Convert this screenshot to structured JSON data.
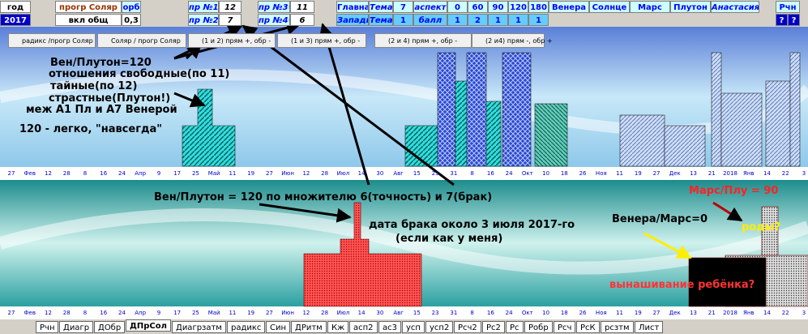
{
  "toolbar": {
    "row1": [
      "год",
      "прогр Соляр",
      "орб",
      "пр №1=",
      "12",
      "пр №3=",
      "11",
      "Главная",
      "Тема",
      "7",
      "аспект",
      "0",
      "60",
      "90",
      "120",
      "180",
      "Венера",
      "Солнце",
      "Марс",
      "Плутон",
      "Анастасия",
      "Рчн"
    ],
    "row2": [
      "2017",
      "вкл общ",
      "0,3",
      "пр №2=",
      "7",
      "пр №4=",
      "6",
      "Западн",
      "Тема",
      "1",
      "балл",
      "1",
      "2",
      "1",
      "1",
      "1",
      "?",
      "?"
    ]
  },
  "options": [
    "радикс /прогр Соляр",
    "Соляр / прогр Соляр",
    "(1 и 2) прям +, обр -",
    "(1 и 3) прям +, обр -",
    "(2 и 4) прям +, обр -",
    "(2 и4) прям -, обр +"
  ],
  "upper_annotations": [
    "Вен/Плутон=120",
    "отношения свободные(по 11)",
    "тайные(по 12)",
    "страстные(Плутон!)",
    "меж А1 Пл и А7 Венерой",
    "120 - легко, \"навсегда\""
  ],
  "upper_axis": [
    "27",
    "Фев",
    "12",
    "28",
    "8",
    "16",
    "24",
    "Апр",
    "9",
    "17",
    "25",
    "Май",
    "11",
    "19",
    "27",
    "Июн",
    "12",
    "28",
    "Июл",
    "14",
    "30",
    "Авг",
    "15",
    "23",
    "31",
    "8",
    "16",
    "24",
    "Окт",
    "10",
    "18",
    "26",
    "Ноя",
    "11",
    "19",
    "27",
    "Дек",
    "13",
    "21",
    "2018",
    "Янв",
    "14",
    "22",
    "3"
  ],
  "lower_annotations": [
    "Вен/Плутон = 120 по множителю 6(точность) и 7(брак)",
    "дата брака около 3 июля 2017-го",
    "(если как у меня)",
    "Марс/Плу = 90",
    "Венера/Марс=0",
    "роды?",
    "вынашивание ребёнка?"
  ],
  "lower_axis": [
    "27",
    "Фев",
    "12",
    "28",
    "8",
    "16",
    "24",
    "Апр",
    "9",
    "17",
    "25",
    "Май",
    "11",
    "19",
    "27",
    "Июн",
    "12",
    "28",
    "Июл",
    "14",
    "30",
    "Авг",
    "15",
    "23",
    "31",
    "8",
    "16",
    "24",
    "Окт",
    "10",
    "18",
    "26",
    "Ноя",
    "11",
    "19",
    "27",
    "Дек",
    "13",
    "21",
    "2018",
    "Янв",
    "14",
    "22",
    "3"
  ],
  "tabs": [
    "Рчн",
    "Диагр",
    "ДОбр",
    "ДПрСол",
    "Диагрзатм",
    "радикс",
    "Син",
    "ДРитм",
    "Кж",
    "асп2",
    "ас3",
    "усп",
    "усп2",
    "Рсч2",
    "Рс2",
    "Рс",
    "Робр",
    "Рсч",
    "РсК",
    "рсзтм",
    "Лист"
  ]
}
